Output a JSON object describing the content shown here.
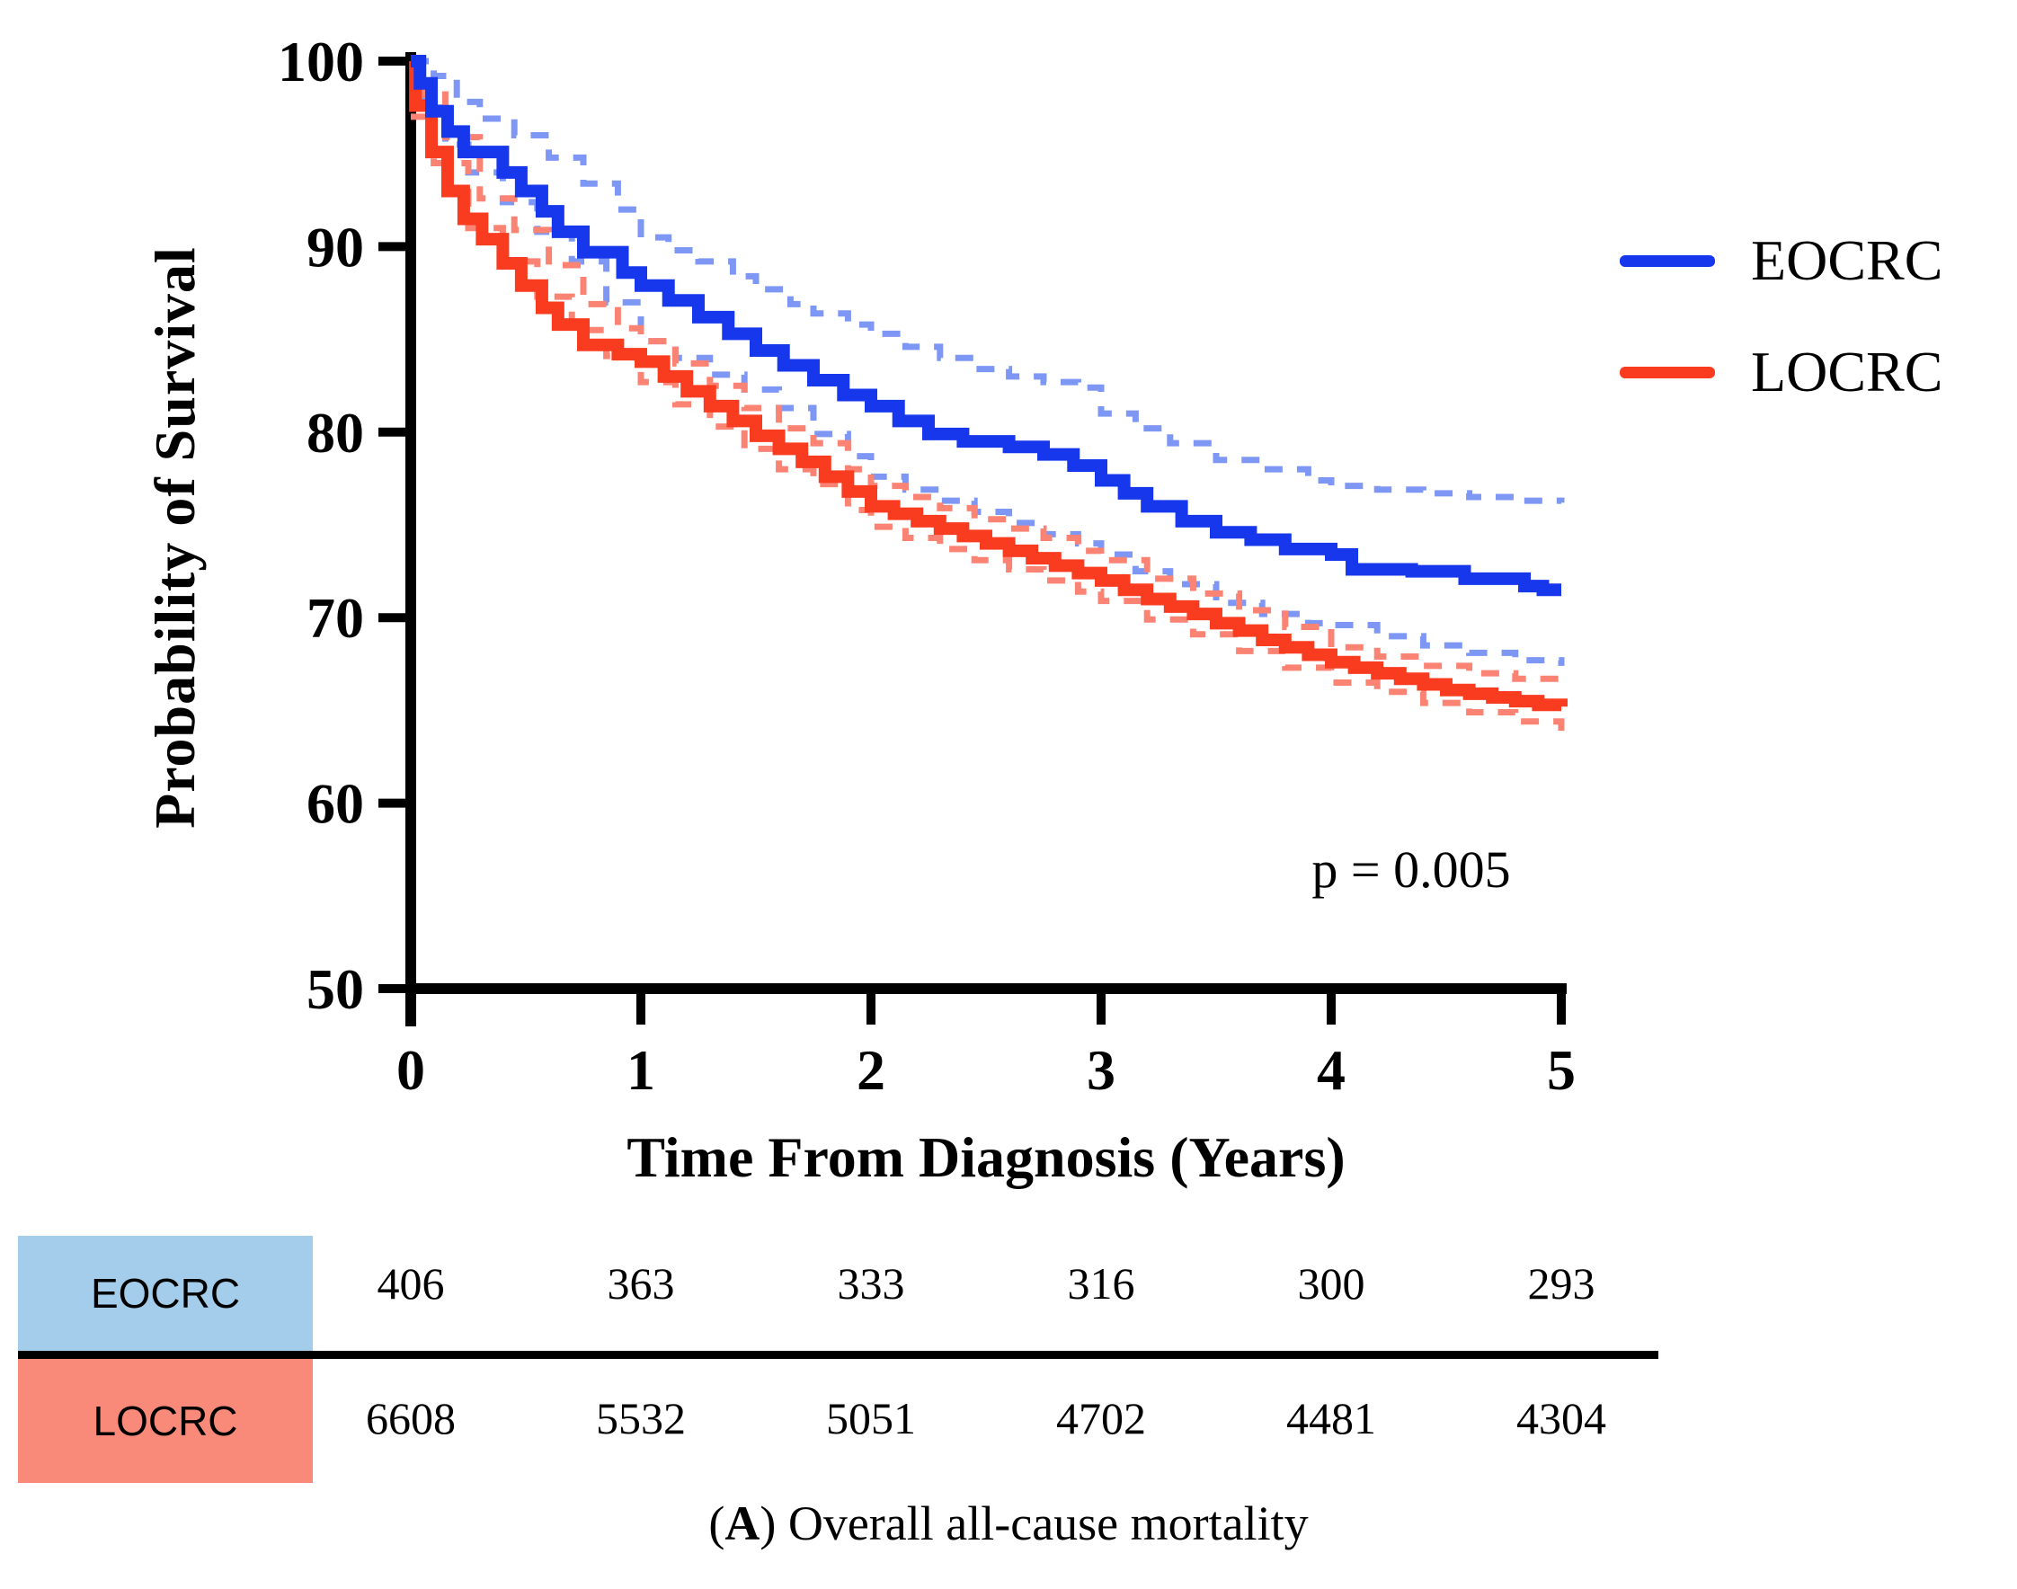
{
  "chart_data": {
    "type": "line",
    "subtype": "kaplan-meier-step",
    "title": "",
    "xlabel": "Time From Diagnosis (Years)",
    "ylabel": "Probability of Survival",
    "xlim": [
      0,
      5
    ],
    "ylim": [
      50,
      100
    ],
    "x_ticks": [
      0,
      1,
      2,
      3,
      4,
      5
    ],
    "y_ticks": [
      50,
      60,
      70,
      80,
      90,
      100
    ],
    "grid": false,
    "annotation": "p = 0.005",
    "axis_color": "#000000",
    "series": [
      {
        "name": "EOCRC upper 95% CI",
        "role": "ci",
        "color": "#7e97f5",
        "dash": true,
        "points": [
          [
            0,
            100
          ],
          [
            0.1,
            99.2
          ],
          [
            0.2,
            97.8
          ],
          [
            0.3,
            96.9
          ],
          [
            0.45,
            96
          ],
          [
            0.6,
            94.8
          ],
          [
            0.75,
            93.4
          ],
          [
            0.9,
            92
          ],
          [
            1,
            90.5
          ],
          [
            1.12,
            89.8
          ],
          [
            1.25,
            89.2
          ],
          [
            1.4,
            88.4
          ],
          [
            1.5,
            87.7
          ],
          [
            1.65,
            86.9
          ],
          [
            1.75,
            86.4
          ],
          [
            1.9,
            85.8
          ],
          [
            2,
            85.3
          ],
          [
            2.15,
            84.6
          ],
          [
            2.3,
            84
          ],
          [
            2.45,
            83.4
          ],
          [
            2.6,
            83
          ],
          [
            2.75,
            82.7
          ],
          [
            2.9,
            82.4
          ],
          [
            3,
            81
          ],
          [
            3.15,
            80.2
          ],
          [
            3.3,
            79.4
          ],
          [
            3.5,
            78.5
          ],
          [
            3.7,
            78
          ],
          [
            3.9,
            77.4
          ],
          [
            4,
            77.1
          ],
          [
            4.2,
            76.9
          ],
          [
            4.4,
            76.7
          ],
          [
            4.6,
            76.5
          ],
          [
            4.8,
            76.3
          ],
          [
            5,
            76.2
          ]
        ]
      },
      {
        "name": "EOCRC lower 95% CI",
        "role": "ci",
        "color": "#7e97f5",
        "dash": true,
        "points": [
          [
            0,
            100
          ],
          [
            0.05,
            97.5
          ],
          [
            0.15,
            95.5
          ],
          [
            0.25,
            94
          ],
          [
            0.4,
            92.4
          ],
          [
            0.55,
            90.8
          ],
          [
            0.7,
            89.2
          ],
          [
            0.85,
            87
          ],
          [
            1,
            84.9
          ],
          [
            1.15,
            84
          ],
          [
            1.3,
            83.1
          ],
          [
            1.45,
            82.3
          ],
          [
            1.6,
            81.3
          ],
          [
            1.75,
            79.9
          ],
          [
            1.9,
            78.7
          ],
          [
            2,
            77.6
          ],
          [
            2.15,
            76.9
          ],
          [
            2.3,
            76.3
          ],
          [
            2.45,
            75.7
          ],
          [
            2.6,
            75.1
          ],
          [
            2.75,
            74.5
          ],
          [
            2.9,
            74
          ],
          [
            3,
            73.4
          ],
          [
            3.15,
            72.5
          ],
          [
            3.3,
            71.8
          ],
          [
            3.5,
            70.8
          ],
          [
            3.7,
            70.2
          ],
          [
            3.9,
            69.7
          ],
          [
            4,
            69.6
          ],
          [
            4.2,
            69
          ],
          [
            4.4,
            68.5
          ],
          [
            4.6,
            68.1
          ],
          [
            4.8,
            67.7
          ],
          [
            5,
            67.4
          ]
        ]
      },
      {
        "name": "LOCRC upper 95% CI",
        "role": "ci",
        "color": "#fb8373",
        "dash": true,
        "points": [
          [
            0,
            100
          ],
          [
            0.05,
            98.2
          ],
          [
            0.15,
            95.9
          ],
          [
            0.3,
            92.6
          ],
          [
            0.45,
            90.9
          ],
          [
            0.6,
            89
          ],
          [
            0.75,
            86.9
          ],
          [
            0.9,
            85.6
          ],
          [
            1,
            84.9
          ],
          [
            1.15,
            83.7
          ],
          [
            1.3,
            82.5
          ],
          [
            1.45,
            81.3
          ],
          [
            1.6,
            80.2
          ],
          [
            1.75,
            79.4
          ],
          [
            1.9,
            78
          ],
          [
            2,
            77.1
          ],
          [
            2.15,
            76.5
          ],
          [
            2.3,
            75.9
          ],
          [
            2.45,
            75.3
          ],
          [
            2.6,
            74.8
          ],
          [
            2.75,
            74.3
          ],
          [
            2.9,
            73.6
          ],
          [
            3,
            73.1
          ],
          [
            3.2,
            72.1
          ],
          [
            3.4,
            71.3
          ],
          [
            3.6,
            70.4
          ],
          [
            3.8,
            69.5
          ],
          [
            4,
            68.4
          ],
          [
            4.2,
            67.9
          ],
          [
            4.4,
            67.4
          ],
          [
            4.6,
            67
          ],
          [
            4.8,
            66.7
          ],
          [
            5,
            66.5
          ]
        ]
      },
      {
        "name": "LOCRC lower 95% CI",
        "role": "ci",
        "color": "#fb8373",
        "dash": true,
        "points": [
          [
            0,
            97
          ],
          [
            0.1,
            94.5
          ],
          [
            0.25,
            91
          ],
          [
            0.4,
            89.2
          ],
          [
            0.55,
            87.3
          ],
          [
            0.7,
            85.5
          ],
          [
            0.85,
            84.1
          ],
          [
            1,
            82.7
          ],
          [
            1.15,
            81.5
          ],
          [
            1.3,
            80.3
          ],
          [
            1.45,
            79.1
          ],
          [
            1.6,
            78
          ],
          [
            1.75,
            77.2
          ],
          [
            1.9,
            75.8
          ],
          [
            2,
            74.9
          ],
          [
            2.15,
            74.3
          ],
          [
            2.3,
            73.7
          ],
          [
            2.45,
            73.1
          ],
          [
            2.6,
            72.6
          ],
          [
            2.75,
            72
          ],
          [
            2.9,
            71.4
          ],
          [
            3,
            70.9
          ],
          [
            3.2,
            69.9
          ],
          [
            3.4,
            69.1
          ],
          [
            3.6,
            68.2
          ],
          [
            3.8,
            67.3
          ],
          [
            4,
            66.5
          ],
          [
            4.2,
            66
          ],
          [
            4.4,
            65.4
          ],
          [
            4.6,
            64.9
          ],
          [
            4.8,
            64.4
          ],
          [
            5,
            63.9
          ]
        ]
      },
      {
        "name": "LOCRC",
        "role": "main",
        "color": "#f93c20",
        "dash": false,
        "points": [
          [
            0,
            100
          ],
          [
            0.02,
            97.6
          ],
          [
            0.09,
            95.1
          ],
          [
            0.16,
            93
          ],
          [
            0.23,
            91.5
          ],
          [
            0.31,
            90.4
          ],
          [
            0.4,
            89.1
          ],
          [
            0.48,
            87.9
          ],
          [
            0.57,
            86.7
          ],
          [
            0.64,
            85.8
          ],
          [
            0.75,
            84.7
          ],
          [
            0.9,
            84.2
          ],
          [
            1,
            83.8
          ],
          [
            1.1,
            83
          ],
          [
            1.2,
            82.2
          ],
          [
            1.3,
            81.4
          ],
          [
            1.4,
            80.6
          ],
          [
            1.5,
            79.8
          ],
          [
            1.6,
            79.1
          ],
          [
            1.7,
            78.4
          ],
          [
            1.8,
            77.6
          ],
          [
            1.9,
            76.8
          ],
          [
            2,
            76
          ],
          [
            2.1,
            75.6
          ],
          [
            2.2,
            75.2
          ],
          [
            2.3,
            74.8
          ],
          [
            2.4,
            74.4
          ],
          [
            2.5,
            74
          ],
          [
            2.6,
            73.6
          ],
          [
            2.7,
            73.2
          ],
          [
            2.8,
            72.8
          ],
          [
            2.9,
            72.4
          ],
          [
            3,
            72
          ],
          [
            3.1,
            71.5
          ],
          [
            3.2,
            71
          ],
          [
            3.3,
            70.6
          ],
          [
            3.4,
            70.2
          ],
          [
            3.5,
            69.7
          ],
          [
            3.6,
            69.3
          ],
          [
            3.7,
            68.8
          ],
          [
            3.8,
            68.4
          ],
          [
            3.9,
            68
          ],
          [
            4,
            67.6
          ],
          [
            4.1,
            67.3
          ],
          [
            4.2,
            67
          ],
          [
            4.3,
            66.7
          ],
          [
            4.4,
            66.4
          ],
          [
            4.5,
            66.1
          ],
          [
            4.6,
            65.9
          ],
          [
            4.7,
            65.7
          ],
          [
            4.8,
            65.5
          ],
          [
            4.9,
            65.3
          ],
          [
            5,
            65.2
          ]
        ]
      },
      {
        "name": "EOCRC",
        "role": "main",
        "color": "#1637ec",
        "dash": false,
        "points": [
          [
            0,
            100
          ],
          [
            0.04,
            98.8
          ],
          [
            0.09,
            97.3
          ],
          [
            0.16,
            96.2
          ],
          [
            0.23,
            95.1
          ],
          [
            0.4,
            94
          ],
          [
            0.48,
            93
          ],
          [
            0.57,
            91.9
          ],
          [
            0.64,
            90.8
          ],
          [
            0.75,
            89.7
          ],
          [
            0.92,
            88.6
          ],
          [
            1,
            87.9
          ],
          [
            1.12,
            87.1
          ],
          [
            1.25,
            86.2
          ],
          [
            1.38,
            85.3
          ],
          [
            1.5,
            84.4
          ],
          [
            1.62,
            83.6
          ],
          [
            1.75,
            82.8
          ],
          [
            1.88,
            82
          ],
          [
            2,
            81.4
          ],
          [
            2.12,
            80.6
          ],
          [
            2.25,
            79.9
          ],
          [
            2.4,
            79.5
          ],
          [
            2.6,
            79.2
          ],
          [
            2.75,
            78.8
          ],
          [
            2.88,
            78.2
          ],
          [
            3,
            77.4
          ],
          [
            3.1,
            76.7
          ],
          [
            3.2,
            76
          ],
          [
            3.35,
            75.2
          ],
          [
            3.5,
            74.6
          ],
          [
            3.65,
            74.2
          ],
          [
            3.8,
            73.7
          ],
          [
            4,
            73.4
          ],
          [
            4.09,
            72.6
          ],
          [
            4.35,
            72.5
          ],
          [
            4.58,
            72.1
          ],
          [
            4.84,
            71.7
          ],
          [
            4.92,
            71.5
          ],
          [
            5,
            71.5
          ]
        ]
      }
    ],
    "legend": {
      "position": "right",
      "items": [
        {
          "label": "EOCRC",
          "color": "#1637ec"
        },
        {
          "label": "LOCRC",
          "color": "#f93c20"
        }
      ]
    }
  },
  "risk_table": {
    "time_points": [
      0,
      1,
      2,
      3,
      4,
      5
    ],
    "rows": [
      {
        "label": "EOCRC",
        "box_color": "#a3cdea",
        "values": [
          "406",
          "363",
          "333",
          "316",
          "300",
          "293"
        ]
      },
      {
        "label": "LOCRC",
        "box_color": "#f98a7a",
        "values": [
          "6608",
          "5532",
          "5051",
          "4702",
          "4481",
          "4304"
        ]
      }
    ]
  },
  "caption": {
    "open": "(",
    "label": "A",
    "close": ") ",
    "text": "Overall all-cause mortality"
  }
}
